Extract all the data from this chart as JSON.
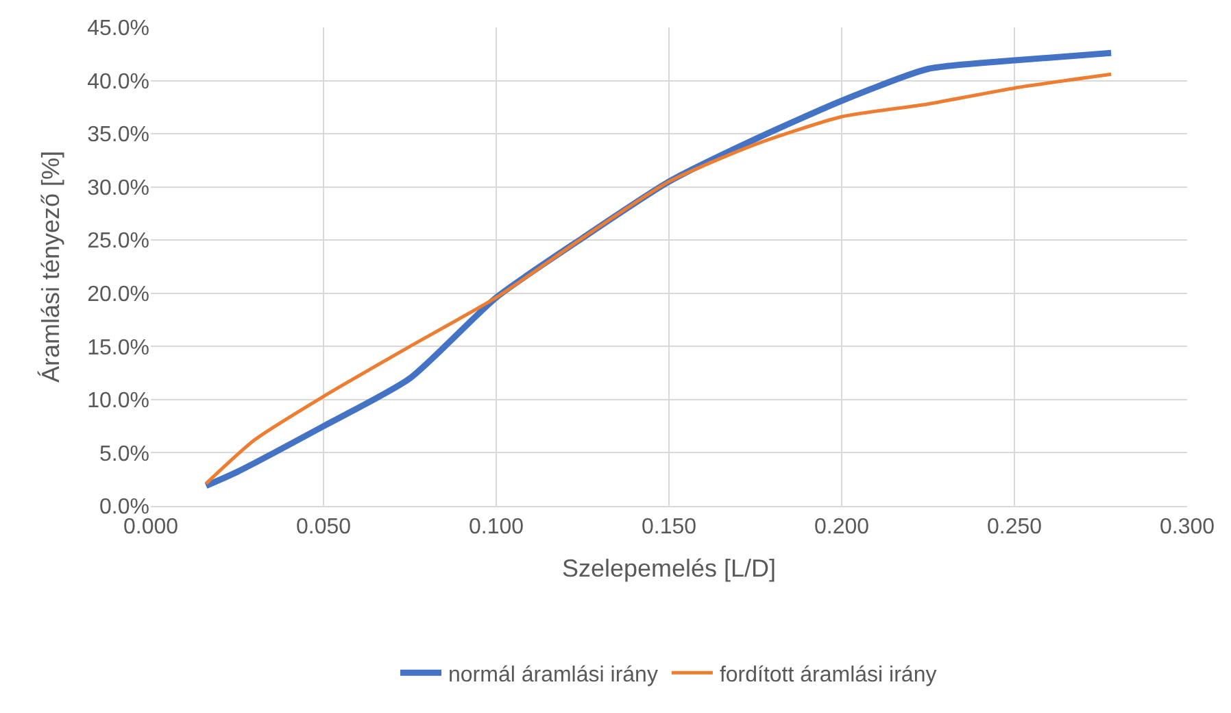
{
  "chart_data": {
    "type": "line",
    "xlabel": "Szelepemelés [L/D]",
    "ylabel": "Áramlási tényező [%]",
    "xlim": [
      0,
      0.3
    ],
    "xticks": [
      {
        "value": 0,
        "label": "0.000"
      },
      {
        "value": 0.05,
        "label": "0.050"
      },
      {
        "value": 0.1,
        "label": "0.100"
      },
      {
        "value": 0.15,
        "label": "0.150"
      },
      {
        "value": 0.2,
        "label": "0.200"
      },
      {
        "value": 0.25,
        "label": "0.250"
      },
      {
        "value": 0.3,
        "label": "0.300"
      }
    ],
    "ylim": [
      0,
      45
    ],
    "yticks": [
      {
        "value": 0,
        "label": "0.0%"
      },
      {
        "value": 5,
        "label": "5.0%"
      },
      {
        "value": 10,
        "label": "10.0%"
      },
      {
        "value": 15,
        "label": "15.0%"
      },
      {
        "value": 20,
        "label": "20.0%"
      },
      {
        "value": 25,
        "label": "25.0%"
      },
      {
        "value": 30,
        "label": "30.0%"
      },
      {
        "value": 35,
        "label": "35.0%"
      },
      {
        "value": 40,
        "label": "40.0%"
      },
      {
        "value": 45,
        "label": "45.0%"
      }
    ],
    "grid": true,
    "legend": "bottom",
    "marker": "none",
    "line_style": "solid",
    "series": [
      {
        "name": "normál áramlási irány",
        "color": "#4472c4",
        "x": [
          0.016,
          0.025,
          0.05,
          0.075,
          0.1,
          0.125,
          0.15,
          0.175,
          0.2,
          0.225,
          0.25,
          0.278
        ],
        "values": [
          1.9,
          3.2,
          7.5,
          12.0,
          19.6,
          25.2,
          30.5,
          34.5,
          38.1,
          41.1,
          41.9,
          42.6
        ]
      },
      {
        "name": "fordított áramlási irány",
        "color": "#ed7d31",
        "x": [
          0.016,
          0.03,
          0.05,
          0.075,
          0.1,
          0.125,
          0.15,
          0.175,
          0.2,
          0.225,
          0.25,
          0.278
        ],
        "values": [
          2.1,
          6.2,
          10.3,
          15.0,
          19.6,
          25.2,
          30.5,
          34.0,
          36.6,
          37.8,
          39.3,
          40.6
        ]
      }
    ]
  }
}
